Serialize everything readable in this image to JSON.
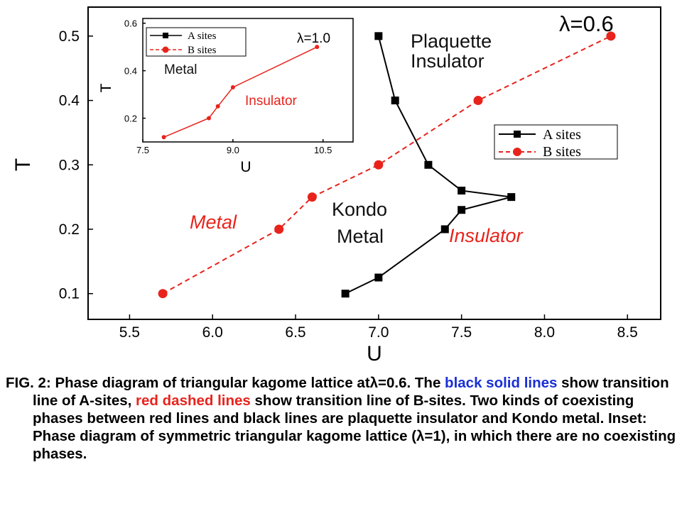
{
  "chart_data": [
    {
      "type": "line",
      "role": "main",
      "xlabel": "U",
      "ylabel": "T",
      "xlim": [
        5.25,
        8.7
      ],
      "ylim": [
        0.06,
        0.545
      ],
      "xticks": [
        5.5,
        6.0,
        6.5,
        7.0,
        7.5,
        8.0,
        8.5
      ],
      "yticks": [
        0.1,
        0.2,
        0.3,
        0.4,
        0.5
      ],
      "grid": false,
      "legend_position": "right",
      "lambda_label": "λ=0.6",
      "series": [
        {
          "name": "A sites",
          "color": "#000000",
          "line": "solid",
          "marker": "square",
          "x": [
            7.0,
            7.1,
            7.3,
            7.5,
            7.8,
            7.5,
            7.4,
            7.0,
            6.8
          ],
          "y": [
            0.5,
            0.4,
            0.3,
            0.26,
            0.25,
            0.23,
            0.2,
            0.125,
            0.1
          ]
        },
        {
          "name": "B sites",
          "color": "#e8231c",
          "line": "dashed",
          "marker": "circle",
          "x": [
            5.7,
            6.4,
            6.6,
            7.0,
            7.6,
            8.4
          ],
          "y": [
            0.1,
            0.2,
            0.25,
            0.3,
            0.4,
            0.5
          ]
        }
      ],
      "annotations": [
        {
          "text": "Plaquette",
          "color": "#111111",
          "italic": false
        },
        {
          "text": "Insulator",
          "color": "#111111",
          "italic": false
        },
        {
          "text": "Kondo",
          "color": "#111111",
          "italic": false
        },
        {
          "text": "Metal",
          "color": "#111111",
          "italic": false
        },
        {
          "text": "Metal",
          "color": "#e8231c",
          "italic": true
        },
        {
          "text": "Insulator",
          "color": "#e8231c",
          "italic": true
        }
      ]
    },
    {
      "type": "line",
      "role": "inset",
      "xlabel": "U",
      "ylabel": "T",
      "xlim": [
        7.5,
        11.0
      ],
      "ylim": [
        0.1,
        0.62
      ],
      "xticks": [
        7.5,
        9.0,
        10.5
      ],
      "yticks": [
        0.2,
        0.4,
        0.6
      ],
      "grid": false,
      "legend_position": "top-left",
      "lambda_label": "λ=1.0",
      "legend_entries": [
        {
          "name": "A sites",
          "color": "#000000",
          "line": "solid",
          "marker": "square"
        },
        {
          "name": "B sites",
          "color": "#e8231c",
          "line": "dashed",
          "marker": "circle"
        }
      ],
      "series": [
        {
          "color": "#e8231c",
          "line": "solid",
          "marker": "circle",
          "x": [
            7.85,
            8.6,
            8.75,
            9.0,
            10.4
          ],
          "y": [
            0.12,
            0.2,
            0.25,
            0.33,
            0.5
          ]
        }
      ],
      "annotations": [
        {
          "text": "Metal",
          "color": "#111111"
        },
        {
          "text": "Insulator",
          "color": "#e8231c"
        }
      ]
    }
  ],
  "caption": {
    "part1": "FIG. 2: Phase diagram of triangular kagome lattice atλ=0.6. The ",
    "black_solid": "black solid lines",
    "part2": " show transition line of A-sites, ",
    "red_dashed": "red dashed lines",
    "part3": " show transition line of B-sites. Two kinds of coexisting phases between red lines and black lines are plaquette insulator and Kondo metal. Inset:  Phase diagram of symmetric triangular kagome lattice (λ=1), in which there are no coexisting phases."
  }
}
